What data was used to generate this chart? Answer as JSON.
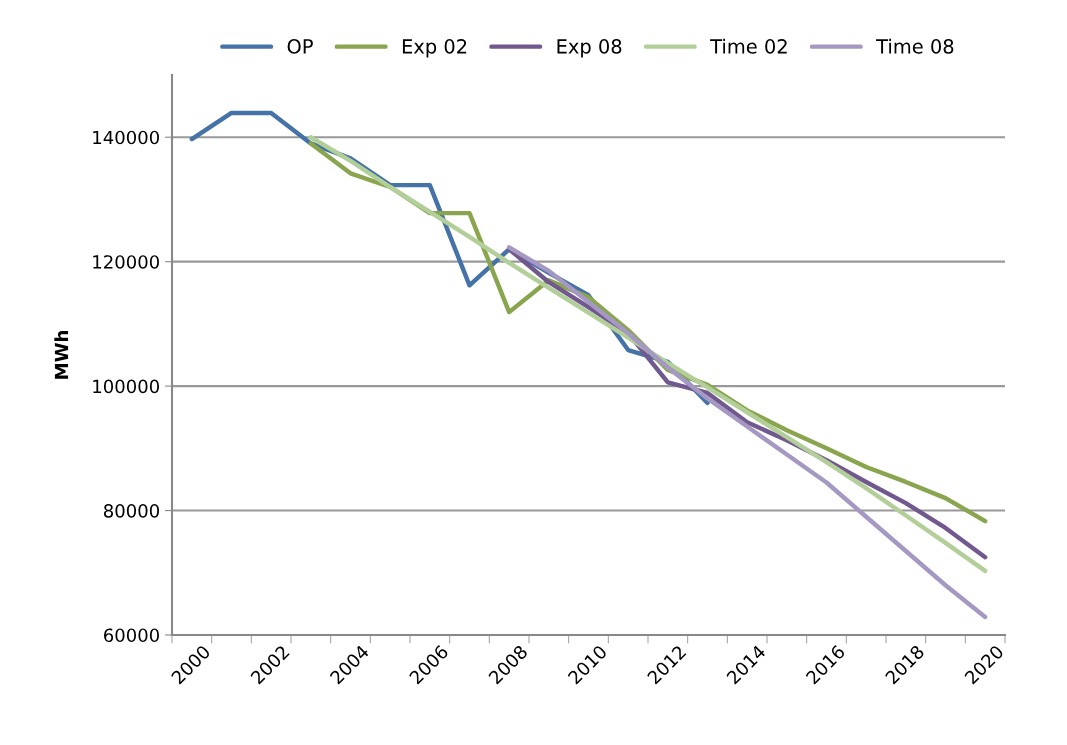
{
  "chart_data": {
    "type": "line",
    "ylabel": "MWh",
    "categories": [
      "2000",
      null,
      "2002",
      null,
      "2004",
      null,
      "2006",
      null,
      "2008",
      null,
      "2010",
      null,
      "2012",
      null,
      "2014",
      null,
      "2016",
      null,
      "2018",
      null,
      "2020"
    ],
    "series": [
      {
        "name": "OP",
        "color": "#4572a7",
        "values": [
          139700,
          143900,
          143900,
          139000,
          136600,
          132300,
          132300,
          116200,
          122000,
          118200,
          114600,
          105800,
          103900,
          97300,
          null,
          null,
          null,
          null,
          null,
          null,
          null
        ]
      },
      {
        "name": "Exp 02",
        "color": "#89a54e",
        "values": [
          null,
          null,
          null,
          139000,
          134200,
          132000,
          127800,
          127800,
          111900,
          117000,
          114300,
          109000,
          102600,
          100200,
          96100,
          92900,
          90000,
          87000,
          84600,
          82000,
          78300
        ]
      },
      {
        "name": "Exp 08",
        "color": "#71588f",
        "values": [
          null,
          null,
          null,
          null,
          null,
          null,
          null,
          null,
          122000,
          116700,
          112700,
          108500,
          100600,
          98900,
          94200,
          91300,
          88100,
          84600,
          81200,
          77200,
          72500
        ]
      },
      {
        "name": "Time 02",
        "color": "#b3cf99",
        "values": [
          null,
          null,
          null,
          140000,
          136200,
          132000,
          128000,
          124000,
          119800,
          115800,
          111800,
          107800,
          103700,
          99800,
          95800,
          91800,
          87800,
          83600,
          79200,
          74800,
          70300
        ]
      },
      {
        "name": "Time 08",
        "color": "#a599c4",
        "values": [
          null,
          null,
          null,
          null,
          null,
          null,
          null,
          null,
          122300,
          118500,
          113500,
          108500,
          103000,
          98000,
          93500,
          89000,
          84500,
          79000,
          73500,
          68000,
          62900
        ]
      }
    ],
    "ylim": [
      60000,
      150000
    ],
    "yticks": [
      60000,
      80000,
      100000,
      120000,
      140000
    ],
    "grid": "y",
    "legend": "top",
    "marker": "none",
    "line_style": "solid"
  }
}
